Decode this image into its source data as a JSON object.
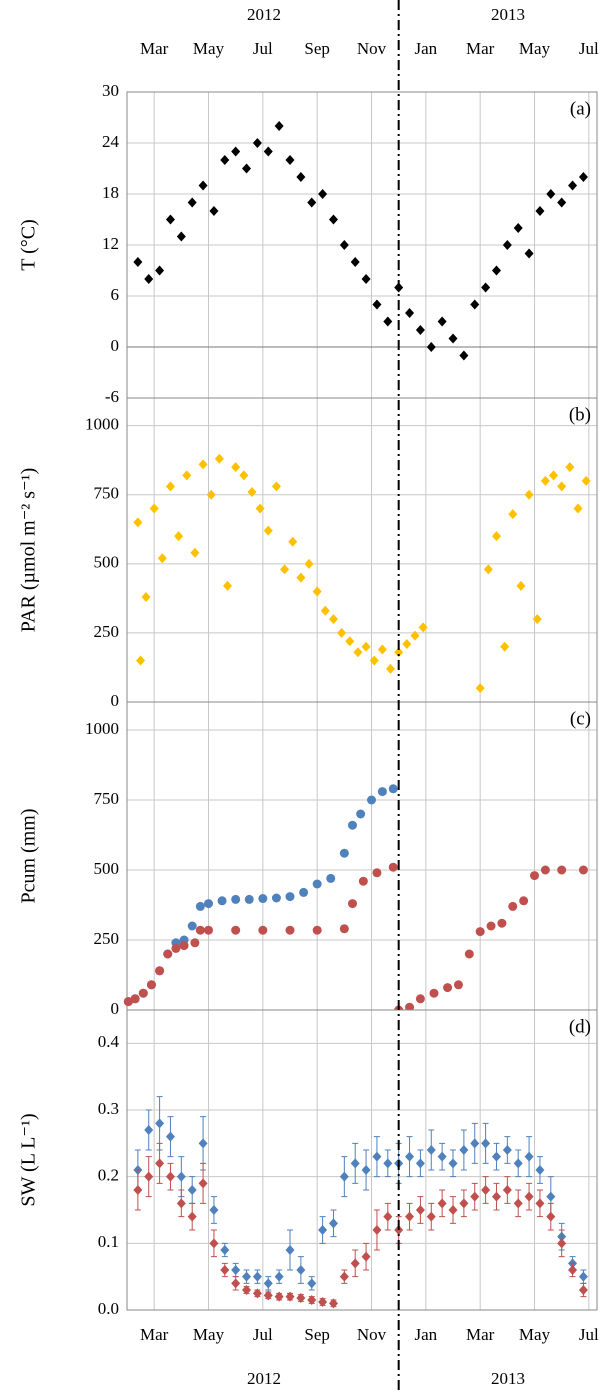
{
  "chart_data": [
    {
      "type": "scatter",
      "marker": "diamond",
      "annotation": "(a)",
      "ylabel": "T (°C)",
      "xtick_labels": "top",
      "year_labels": [
        "2012",
        "2013"
      ],
      "xlim": [
        2,
        19.3
      ],
      "xticks": [
        {
          "value": 3,
          "label": "Mar"
        },
        {
          "value": 5,
          "label": "May"
        },
        {
          "value": 7,
          "label": "Jul"
        },
        {
          "value": 9,
          "label": "Sep"
        },
        {
          "value": 11,
          "label": "Nov"
        },
        {
          "value": 13,
          "label": "Jan"
        },
        {
          "value": 15,
          "label": "Mar"
        },
        {
          "value": 17,
          "label": "May"
        },
        {
          "value": 19,
          "label": "Jul"
        }
      ],
      "ylim": [
        -6,
        30
      ],
      "yticks": [
        -6,
        0,
        6,
        12,
        18,
        24,
        30
      ],
      "grid": true,
      "series": [
        {
          "color": "#000000",
          "x": [
            2.4,
            2.8,
            3.2,
            3.6,
            4.0,
            4.4,
            4.8,
            5.2,
            5.6,
            6.0,
            6.4,
            6.8,
            7.2,
            7.6,
            8.0,
            8.4,
            8.8,
            9.2,
            9.6,
            10.0,
            10.4,
            10.8,
            11.2,
            11.6,
            12.0,
            12.4,
            12.8,
            13.2,
            13.6,
            14.0,
            14.4,
            14.8,
            15.2,
            15.6,
            16.0,
            16.4,
            16.8,
            17.2,
            17.6,
            18.0,
            18.4,
            18.8
          ],
          "values": [
            10,
            8,
            9,
            15,
            13,
            17,
            19,
            16,
            22,
            23,
            21,
            24,
            23,
            26,
            22,
            20,
            17,
            18,
            15,
            12,
            10,
            8,
            5,
            3,
            7,
            4,
            2,
            0,
            3,
            1,
            -1,
            5,
            7,
            9,
            12,
            14,
            11,
            16,
            18,
            17,
            19,
            20
          ]
        }
      ]
    },
    {
      "type": "scatter",
      "marker": "diamond",
      "annotation": "(b)",
      "ylabel": "PAR (µmol m⁻² s⁻¹)",
      "xlim": [
        2,
        19.3
      ],
      "xticks": [
        {
          "value": 3,
          "label": "Mar"
        },
        {
          "value": 5,
          "label": "May"
        },
        {
          "value": 7,
          "label": "Jul"
        },
        {
          "value": 9,
          "label": "Sep"
        },
        {
          "value": 11,
          "label": "Nov"
        },
        {
          "value": 13,
          "label": "Jan"
        },
        {
          "value": 15,
          "label": "Mar"
        },
        {
          "value": 17,
          "label": "May"
        },
        {
          "value": 19,
          "label": "Jul"
        }
      ],
      "ylim": [
        0,
        1100
      ],
      "yticks": [
        0,
        250,
        500,
        750,
        1000
      ],
      "grid": true,
      "series": [
        {
          "color": "#ffc000",
          "x": [
            2.4,
            2.5,
            2.7,
            3.0,
            3.3,
            3.6,
            3.9,
            4.2,
            4.5,
            4.8,
            5.1,
            5.4,
            5.7,
            6.0,
            6.3,
            6.6,
            6.9,
            7.2,
            7.5,
            7.8,
            8.1,
            8.4,
            8.7,
            9.0,
            9.3,
            9.6,
            9.9,
            10.2,
            10.5,
            10.8,
            11.1,
            11.4,
            11.7,
            12.0,
            12.3,
            12.6,
            12.9,
            15.0,
            15.3,
            15.6,
            15.9,
            16.2,
            16.5,
            16.8,
            17.1,
            17.4,
            17.7,
            18.0,
            18.3,
            18.6,
            18.9
          ],
          "values": [
            650,
            150,
            380,
            700,
            520,
            780,
            600,
            820,
            540,
            860,
            750,
            880,
            420,
            850,
            820,
            760,
            700,
            620,
            780,
            480,
            580,
            450,
            500,
            400,
            330,
            300,
            250,
            220,
            180,
            200,
            150,
            190,
            120,
            180,
            210,
            240,
            270,
            50,
            480,
            600,
            200,
            680,
            420,
            750,
            300,
            800,
            820,
            780,
            850,
            700,
            800
          ]
        }
      ]
    },
    {
      "type": "scatter",
      "marker": "circle",
      "annotation": "(c)",
      "ylabel": "Pcum (mm)",
      "xlim": [
        2,
        19.3
      ],
      "xticks": [
        {
          "value": 3,
          "label": "Mar"
        },
        {
          "value": 5,
          "label": "May"
        },
        {
          "value": 7,
          "label": "Jul"
        },
        {
          "value": 9,
          "label": "Sep"
        },
        {
          "value": 11,
          "label": "Nov"
        },
        {
          "value": 13,
          "label": "Jan"
        },
        {
          "value": 15,
          "label": "Mar"
        },
        {
          "value": 17,
          "label": "May"
        },
        {
          "value": 19,
          "label": "Jul"
        }
      ],
      "ylim": [
        0,
        1100
      ],
      "yticks": [
        0,
        250,
        500,
        750,
        1000
      ],
      "grid": true,
      "series": [
        {
          "color": "#4f81bd",
          "x": [
            2.05,
            2.3,
            2.6,
            2.9,
            3.2,
            3.5,
            3.8,
            4.1,
            4.4,
            4.7,
            5.0,
            5.5,
            6.0,
            6.5,
            7.0,
            7.5,
            8.0,
            8.5,
            9.0,
            9.5,
            10.0,
            10.3,
            10.6,
            11.0,
            11.4,
            11.8
          ],
          "values": [
            30,
            40,
            60,
            90,
            140,
            200,
            240,
            250,
            300,
            370,
            380,
            390,
            395,
            395,
            398,
            400,
            405,
            420,
            450,
            470,
            560,
            660,
            700,
            750,
            780,
            790
          ]
        },
        {
          "color": "#c0504d",
          "x": [
            2.05,
            2.3,
            2.6,
            2.9,
            3.2,
            3.5,
            3.8,
            4.1,
            4.5,
            4.7,
            5.0,
            6.0,
            7.0,
            8.0,
            9.0,
            10.0,
            10.3,
            10.7,
            11.2,
            11.8,
            12.0,
            12.4,
            12.8,
            13.3,
            13.8,
            14.2,
            14.6,
            15.0,
            15.4,
            15.8,
            16.2,
            16.6,
            17.0,
            17.4,
            18.0,
            18.8
          ],
          "values": [
            30,
            40,
            60,
            90,
            140,
            200,
            220,
            230,
            240,
            285,
            285,
            285,
            285,
            285,
            285,
            290,
            380,
            460,
            490,
            510,
            0,
            10,
            40,
            60,
            80,
            90,
            200,
            280,
            300,
            310,
            370,
            390,
            480,
            500,
            500,
            500
          ]
        }
      ]
    },
    {
      "type": "scatter",
      "marker": "diamond",
      "annotation": "(d)",
      "ylabel": "SW (L L⁻¹)",
      "xtick_labels": "bottom",
      "year_labels": [
        "2012",
        "2013"
      ],
      "xlim": [
        2,
        19.3
      ],
      "xticks": [
        {
          "value": 3,
          "label": "Mar"
        },
        {
          "value": 5,
          "label": "May"
        },
        {
          "value": 7,
          "label": "Jul"
        },
        {
          "value": 9,
          "label": "Sep"
        },
        {
          "value": 11,
          "label": "Nov"
        },
        {
          "value": 13,
          "label": "Jan"
        },
        {
          "value": 15,
          "label": "Mar"
        },
        {
          "value": 17,
          "label": "May"
        },
        {
          "value": 19,
          "label": "Jul"
        }
      ],
      "ylim": [
        0,
        0.45
      ],
      "yticks": [
        {
          "value": 0,
          "label": "0.0"
        },
        0.1,
        0.2,
        0.3,
        0.4
      ],
      "grid": true,
      "series": [
        {
          "color": "#4f81bd",
          "x": [
            2.4,
            2.8,
            3.2,
            3.6,
            4.0,
            4.4,
            4.8,
            5.2,
            5.6,
            6.0,
            6.4,
            6.8,
            7.2,
            7.6,
            8.0,
            8.4,
            8.8,
            9.2,
            9.6,
            10.0,
            10.4,
            10.8,
            11.2,
            11.6,
            12.0,
            12.4,
            12.8,
            13.2,
            13.6,
            14.0,
            14.4,
            14.8,
            15.2,
            15.6,
            16.0,
            16.4,
            16.8,
            17.2,
            17.6,
            18.0,
            18.4,
            18.8
          ],
          "values": [
            0.21,
            0.27,
            0.28,
            0.26,
            0.2,
            0.18,
            0.25,
            0.15,
            0.09,
            0.06,
            0.05,
            0.05,
            0.04,
            0.05,
            0.09,
            0.06,
            0.04,
            0.12,
            0.13,
            0.2,
            0.22,
            0.21,
            0.23,
            0.22,
            0.22,
            0.23,
            0.22,
            0.24,
            0.23,
            0.22,
            0.24,
            0.25,
            0.25,
            0.23,
            0.24,
            0.22,
            0.23,
            0.21,
            0.17,
            0.11,
            0.07,
            0.05
          ],
          "errors": [
            0.03,
            0.03,
            0.04,
            0.03,
            0.03,
            0.02,
            0.04,
            0.02,
            0.01,
            0.01,
            0.01,
            0.01,
            0.01,
            0.01,
            0.03,
            0.02,
            0.01,
            0.02,
            0.02,
            0.03,
            0.03,
            0.03,
            0.03,
            0.02,
            0.03,
            0.03,
            0.02,
            0.03,
            0.02,
            0.02,
            0.03,
            0.03,
            0.03,
            0.02,
            0.02,
            0.02,
            0.03,
            0.02,
            0.03,
            0.02,
            0.01,
            0.01
          ]
        },
        {
          "color": "#c0504d",
          "x": [
            2.4,
            2.8,
            3.2,
            3.6,
            4.0,
            4.4,
            4.8,
            5.2,
            5.6,
            6.0,
            6.4,
            6.8,
            7.2,
            7.6,
            8.0,
            8.4,
            8.8,
            9.2,
            9.6,
            10.0,
            10.4,
            10.8,
            11.2,
            11.6,
            12.0,
            12.4,
            12.8,
            13.2,
            13.6,
            14.0,
            14.4,
            14.8,
            15.2,
            15.6,
            16.0,
            16.4,
            16.8,
            17.2,
            17.6,
            18.0,
            18.4,
            18.8
          ],
          "values": [
            0.18,
            0.2,
            0.22,
            0.2,
            0.16,
            0.14,
            0.19,
            0.1,
            0.06,
            0.04,
            0.03,
            0.025,
            0.022,
            0.02,
            0.02,
            0.018,
            0.015,
            0.012,
            0.01,
            0.05,
            0.07,
            0.08,
            0.12,
            0.14,
            0.12,
            0.14,
            0.15,
            0.14,
            0.16,
            0.15,
            0.16,
            0.17,
            0.18,
            0.17,
            0.18,
            0.16,
            0.17,
            0.16,
            0.14,
            0.1,
            0.06,
            0.03
          ],
          "errors": [
            0.03,
            0.03,
            0.03,
            0.02,
            0.02,
            0.02,
            0.03,
            0.02,
            0.01,
            0.01,
            0.005,
            0.005,
            0.005,
            0.005,
            0.005,
            0.005,
            0.005,
            0.005,
            0.005,
            0.01,
            0.02,
            0.02,
            0.03,
            0.02,
            0.02,
            0.02,
            0.02,
            0.02,
            0.02,
            0.02,
            0.02,
            0.02,
            0.02,
            0.02,
            0.02,
            0.02,
            0.02,
            0.02,
            0.02,
            0.02,
            0.01,
            0.01
          ]
        }
      ]
    }
  ]
}
